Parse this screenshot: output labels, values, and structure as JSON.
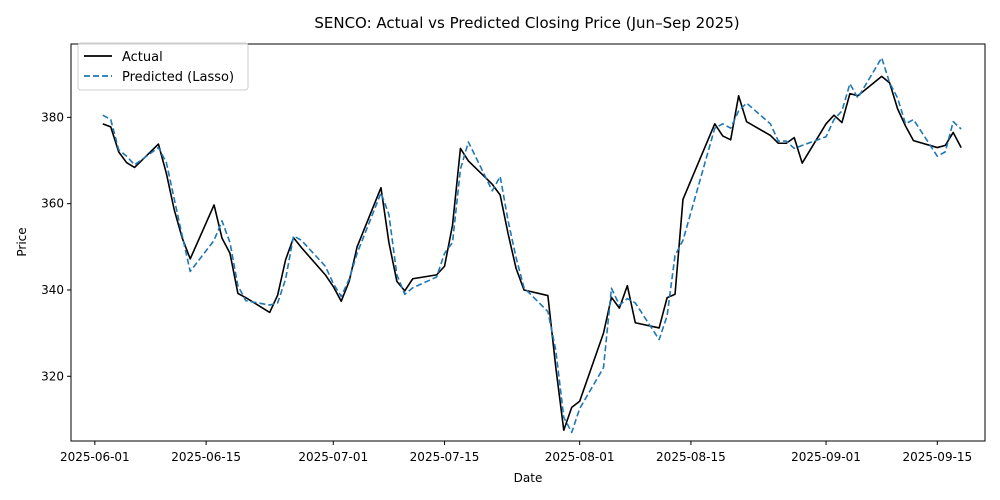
{
  "chart_data": {
    "type": "line",
    "title": "SENCO: Actual vs Predicted Closing Price (Jun–Sep 2025)",
    "xlabel": "Date",
    "ylabel": "Price",
    "x_range": [
      "2025-05-29",
      "2025-09-21"
    ],
    "ylim": [
      305,
      397
    ],
    "x_ticks": [
      "2025-06-01",
      "2025-06-15",
      "2025-07-01",
      "2025-07-15",
      "2025-08-01",
      "2025-08-15",
      "2025-09-01",
      "2025-09-15"
    ],
    "y_ticks": [
      320,
      340,
      360,
      380
    ],
    "grid": false,
    "legend_position": "top-left",
    "series": [
      {
        "name": "Actual",
        "color": "#000000",
        "style": "solid",
        "points": [
          [
            "2025-06-02",
            378.5
          ],
          [
            "2025-06-03",
            377.8
          ],
          [
            "2025-06-04",
            372.0
          ],
          [
            "2025-06-05",
            369.5
          ],
          [
            "2025-06-06",
            368.4
          ],
          [
            "2025-06-09",
            373.8
          ],
          [
            "2025-06-10",
            367.0
          ],
          [
            "2025-06-11",
            358.5
          ],
          [
            "2025-06-12",
            352.0
          ],
          [
            "2025-06-13",
            347.2
          ],
          [
            "2025-06-16",
            359.7
          ],
          [
            "2025-06-17",
            352.0
          ],
          [
            "2025-06-18",
            348.5
          ],
          [
            "2025-06-19",
            339.2
          ],
          [
            "2025-06-20",
            338.2
          ],
          [
            "2025-06-23",
            334.8
          ],
          [
            "2025-06-24",
            338.8
          ],
          [
            "2025-06-25",
            347.0
          ],
          [
            "2025-06-26",
            352.1
          ],
          [
            "2025-06-27",
            349.8
          ],
          [
            "2025-06-30",
            343.5
          ],
          [
            "2025-07-01",
            340.8
          ],
          [
            "2025-07-02",
            337.4
          ],
          [
            "2025-07-03",
            342.0
          ],
          [
            "2025-07-04",
            350.0
          ],
          [
            "2025-07-07",
            363.7
          ],
          [
            "2025-07-08",
            351.0
          ],
          [
            "2025-07-09",
            342.0
          ],
          [
            "2025-07-10",
            339.8
          ],
          [
            "2025-07-11",
            342.6
          ],
          [
            "2025-07-14",
            343.5
          ],
          [
            "2025-07-15",
            345.5
          ],
          [
            "2025-07-16",
            355.0
          ],
          [
            "2025-07-17",
            372.8
          ],
          [
            "2025-07-18",
            369.9
          ],
          [
            "2025-07-21",
            364.5
          ],
          [
            "2025-07-22",
            362.0
          ],
          [
            "2025-07-23",
            353.0
          ],
          [
            "2025-07-24",
            345.0
          ],
          [
            "2025-07-25",
            340.0
          ],
          [
            "2025-07-28",
            338.7
          ],
          [
            "2025-07-29",
            322.0
          ],
          [
            "2025-07-30",
            307.5
          ],
          [
            "2025-07-31",
            312.8
          ],
          [
            "2025-08-01",
            314.2
          ],
          [
            "2025-08-04",
            330.0
          ],
          [
            "2025-08-05",
            338.3
          ],
          [
            "2025-08-06",
            335.8
          ],
          [
            "2025-08-07",
            341.0
          ],
          [
            "2025-08-08",
            332.4
          ],
          [
            "2025-08-11",
            331.2
          ],
          [
            "2025-08-12",
            338.2
          ],
          [
            "2025-08-13",
            339.0
          ],
          [
            "2025-08-14",
            361.0
          ],
          [
            "2025-08-18",
            378.5
          ],
          [
            "2025-08-19",
            375.7
          ],
          [
            "2025-08-20",
            374.8
          ],
          [
            "2025-08-21",
            385.0
          ],
          [
            "2025-08-22",
            379.0
          ],
          [
            "2025-08-25",
            375.8
          ],
          [
            "2025-08-26",
            374.0
          ],
          [
            "2025-08-27",
            374.0
          ],
          [
            "2025-08-28",
            375.3
          ],
          [
            "2025-08-29",
            369.4
          ],
          [
            "2025-09-01",
            378.5
          ],
          [
            "2025-09-02",
            380.5
          ],
          [
            "2025-09-03",
            378.8
          ],
          [
            "2025-09-04",
            385.5
          ],
          [
            "2025-09-05",
            385.0
          ],
          [
            "2025-09-08",
            389.5
          ],
          [
            "2025-09-09",
            388.0
          ],
          [
            "2025-09-10",
            382.0
          ],
          [
            "2025-09-11",
            378.0
          ],
          [
            "2025-09-12",
            374.6
          ],
          [
            "2025-09-15",
            373.0
          ],
          [
            "2025-09-16",
            373.5
          ],
          [
            "2025-09-17",
            376.5
          ],
          [
            "2025-09-18",
            373.0
          ]
        ]
      },
      {
        "name": "Predicted (Lasso)",
        "color": "#1f77b4",
        "style": "dashed",
        "points": [
          [
            "2025-06-02",
            380.5
          ],
          [
            "2025-06-03",
            379.5
          ],
          [
            "2025-06-04",
            372.5
          ],
          [
            "2025-06-05",
            371.0
          ],
          [
            "2025-06-06",
            369.0
          ],
          [
            "2025-06-09",
            373.0
          ],
          [
            "2025-06-10",
            369.5
          ],
          [
            "2025-06-11",
            361.0
          ],
          [
            "2025-06-12",
            352.5
          ],
          [
            "2025-06-13",
            344.3
          ],
          [
            "2025-06-16",
            351.5
          ],
          [
            "2025-06-17",
            356.0
          ],
          [
            "2025-06-18",
            351.0
          ],
          [
            "2025-06-19",
            341.0
          ],
          [
            "2025-06-20",
            337.5
          ],
          [
            "2025-06-23",
            336.5
          ],
          [
            "2025-06-24",
            337.0
          ],
          [
            "2025-06-25",
            342.5
          ],
          [
            "2025-06-26",
            352.5
          ],
          [
            "2025-06-27",
            351.5
          ],
          [
            "2025-06-30",
            345.5
          ],
          [
            "2025-07-01",
            341.5
          ],
          [
            "2025-07-02",
            338.5
          ],
          [
            "2025-07-03",
            342.5
          ],
          [
            "2025-07-04",
            348.5
          ],
          [
            "2025-07-07",
            362.5
          ],
          [
            "2025-07-08",
            357.5
          ],
          [
            "2025-07-09",
            343.5
          ],
          [
            "2025-07-10",
            339.0
          ],
          [
            "2025-07-11",
            340.5
          ],
          [
            "2025-07-14",
            343.0
          ],
          [
            "2025-07-15",
            348.5
          ],
          [
            "2025-07-16",
            351.0
          ],
          [
            "2025-07-17",
            368.0
          ],
          [
            "2025-07-18",
            374.3
          ],
          [
            "2025-07-21",
            363.0
          ],
          [
            "2025-07-22",
            366.3
          ],
          [
            "2025-07-23",
            356.0
          ],
          [
            "2025-07-24",
            347.5
          ],
          [
            "2025-07-25",
            340.5
          ],
          [
            "2025-07-28",
            335.0
          ],
          [
            "2025-07-29",
            326.0
          ],
          [
            "2025-07-30",
            310.5
          ],
          [
            "2025-07-31",
            307.0
          ],
          [
            "2025-08-01",
            312.5
          ],
          [
            "2025-08-04",
            322.0
          ],
          [
            "2025-08-05",
            340.4
          ],
          [
            "2025-08-06",
            336.5
          ],
          [
            "2025-08-07",
            338.0
          ],
          [
            "2025-08-08",
            337.0
          ],
          [
            "2025-08-11",
            328.5
          ],
          [
            "2025-08-12",
            334.0
          ],
          [
            "2025-08-13",
            348.0
          ],
          [
            "2025-08-14",
            351.5
          ],
          [
            "2025-08-18",
            377.5
          ],
          [
            "2025-08-19",
            378.5
          ],
          [
            "2025-08-20",
            377.5
          ],
          [
            "2025-08-21",
            381.5
          ],
          [
            "2025-08-22",
            383.3
          ],
          [
            "2025-08-25",
            378.5
          ],
          [
            "2025-08-26",
            374.5
          ],
          [
            "2025-08-27",
            374.5
          ],
          [
            "2025-08-28",
            372.8
          ],
          [
            "2025-08-29",
            373.5
          ],
          [
            "2025-09-01",
            375.5
          ],
          [
            "2025-09-02",
            379.5
          ],
          [
            "2025-09-03",
            381.5
          ],
          [
            "2025-09-04",
            387.8
          ],
          [
            "2025-09-05",
            384.5
          ],
          [
            "2025-09-08",
            393.8
          ],
          [
            "2025-09-09",
            388.0
          ],
          [
            "2025-09-10",
            384.5
          ],
          [
            "2025-09-11",
            378.5
          ],
          [
            "2025-09-12",
            379.5
          ],
          [
            "2025-09-15",
            371.0
          ],
          [
            "2025-09-16",
            372.0
          ],
          [
            "2025-09-17",
            379.0
          ],
          [
            "2025-09-18",
            377.3
          ]
        ]
      }
    ]
  }
}
